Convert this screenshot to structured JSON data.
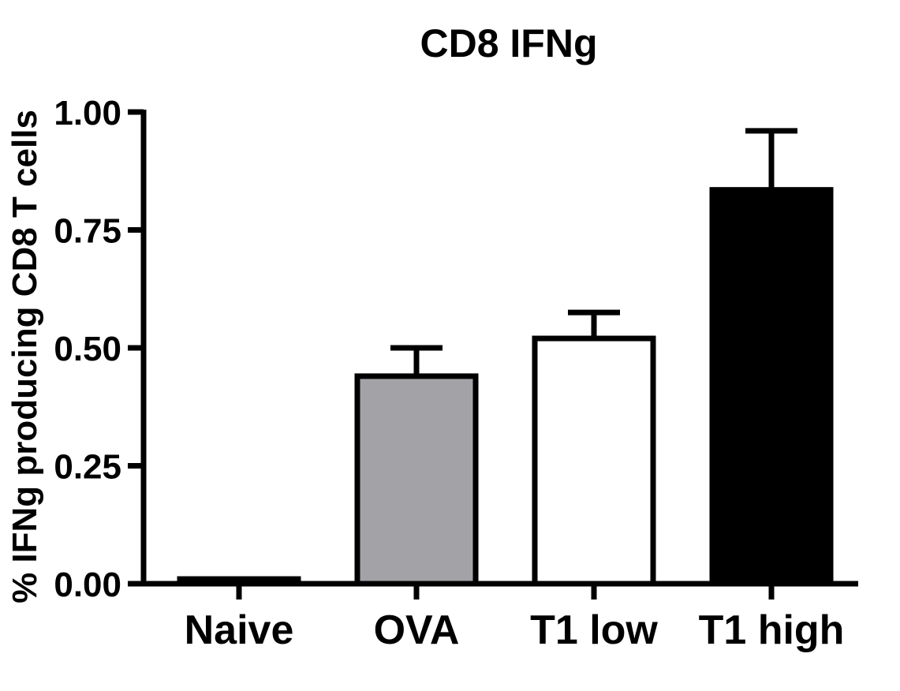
{
  "chart_data": {
    "type": "bar",
    "title": "CD8 IFNg",
    "xlabel": "",
    "ylabel": "% IFNg producing CD8 T cells",
    "ylim": [
      0,
      1.0
    ],
    "yticks": [
      0.0,
      0.25,
      0.5,
      0.75,
      1.0
    ],
    "ytick_labels": [
      "0.00",
      "0.25",
      "0.50",
      "0.75",
      "1.00"
    ],
    "categories": [
      "Naive",
      "OVA",
      "T1 low",
      "T1 high"
    ],
    "values": [
      0.01,
      0.44,
      0.52,
      0.835
    ],
    "error_upper": [
      0.0,
      0.06,
      0.055,
      0.125
    ],
    "bar_fills": [
      "#000000",
      "#a3a3a7",
      "#ffffff",
      "#000000"
    ],
    "grid": false,
    "legend": "none"
  }
}
